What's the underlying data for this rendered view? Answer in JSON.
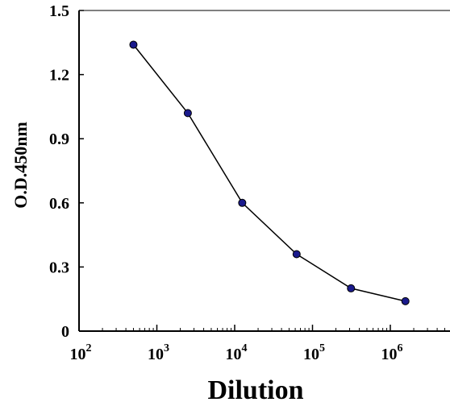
{
  "chart_data": {
    "type": "line",
    "title": "",
    "xlabel": "Dilution",
    "ylabel": "O.D.450nm",
    "x_scale": "log",
    "xlim": [
      100,
      10000000
    ],
    "ylim": [
      0,
      1.5
    ],
    "x_ticks": [
      {
        "value": 100,
        "base": "10",
        "exp": "2"
      },
      {
        "value": 1000,
        "base": "10",
        "exp": "3"
      },
      {
        "value": 10000,
        "base": "10",
        "exp": "4"
      },
      {
        "value": 100000,
        "base": "10",
        "exp": "5"
      },
      {
        "value": 1000000,
        "base": "10",
        "exp": "6"
      }
    ],
    "y_ticks": [
      {
        "value": 0,
        "label": "0"
      },
      {
        "value": 0.3,
        "label": "0.3"
      },
      {
        "value": 0.6,
        "label": "0.6"
      },
      {
        "value": 0.9,
        "label": "0.9"
      },
      {
        "value": 1.2,
        "label": "1.2"
      },
      {
        "value": 1.5,
        "label": "1.5"
      }
    ],
    "grid": false,
    "legend": "none",
    "series": [
      {
        "x": [
          500,
          2500,
          12500,
          62500,
          312500,
          1562500
        ],
        "y": [
          1.34,
          1.02,
          0.6,
          0.36,
          0.2,
          0.14
        ],
        "line_color": "#000000",
        "marker_color": "#1a1a8c"
      }
    ]
  }
}
